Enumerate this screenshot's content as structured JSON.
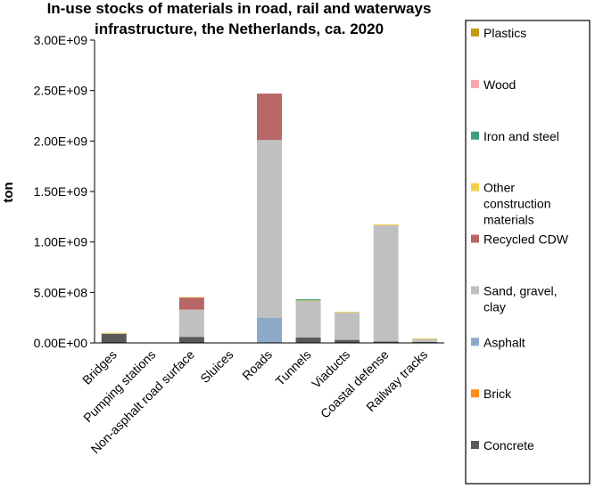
{
  "chart_data": {
    "type": "bar",
    "stacked": true,
    "title_lines": [
      "In-use stocks of materials in road, rail and waterways",
      "infrastructure, the Netherlands, ca. 2020"
    ],
    "ylabel": "ton",
    "ylim": [
      0,
      3000000000
    ],
    "yticks": [
      0,
      500000000,
      1000000000,
      1500000000,
      2000000000,
      2500000000,
      3000000000
    ],
    "ytick_labels": [
      "0.00E+00",
      "5.00E+08",
      "1.00E+09",
      "1.50E+09",
      "2.00E+09",
      "2.50E+09",
      "3.00E+09"
    ],
    "grid": false,
    "legend_position": "right",
    "categories": [
      "Bridges",
      "Pumping stations",
      "Non-asphalt road surface",
      "Sluices",
      "Roads",
      "Tunnels",
      "Viaducts",
      "Coastal defense",
      "Railway tracks"
    ],
    "series": [
      {
        "name": "Concrete",
        "color": "#595959",
        "values": [
          90000000,
          0,
          60000000,
          3000000,
          0,
          55000000,
          30000000,
          15000000,
          10000000
        ]
      },
      {
        "name": "Brick",
        "color": "#ff8c1a",
        "values": [
          0,
          0,
          0,
          0,
          0,
          0,
          0,
          0,
          0
        ]
      },
      {
        "name": "Asphalt",
        "color": "#8ea9c8",
        "values": [
          0,
          0,
          0,
          0,
          250000000,
          0,
          0,
          0,
          0
        ]
      },
      {
        "name": "Sand, gravel,\nclay",
        "color": "#c0c0c0",
        "values": [
          8000000,
          0,
          270000000,
          0,
          1760000000,
          360000000,
          275000000,
          1150000000,
          30000000
        ]
      },
      {
        "name": "Recycled CDW",
        "color": "#b86666",
        "values": [
          0,
          0,
          120000000,
          0,
          460000000,
          0,
          0,
          0,
          0
        ]
      },
      {
        "name": "Other\nconstruction\nmaterials",
        "color": "#f2d14b",
        "values": [
          2000000,
          0,
          5000000,
          0,
          0,
          5000000,
          3000000,
          10000000,
          5000000
        ]
      },
      {
        "name": "Iron and steel",
        "color": "#3f9e7f",
        "values": [
          0,
          0,
          0,
          0,
          0,
          12000000,
          0,
          0,
          0
        ]
      },
      {
        "name": "Wood",
        "color": "#f4a6ac",
        "values": [
          0,
          0,
          0,
          0,
          0,
          0,
          0,
          0,
          0
        ]
      },
      {
        "name": "Plastics",
        "color": "#c49a16",
        "values": [
          0,
          0,
          0,
          0,
          0,
          0,
          0,
          0,
          0
        ]
      }
    ]
  }
}
